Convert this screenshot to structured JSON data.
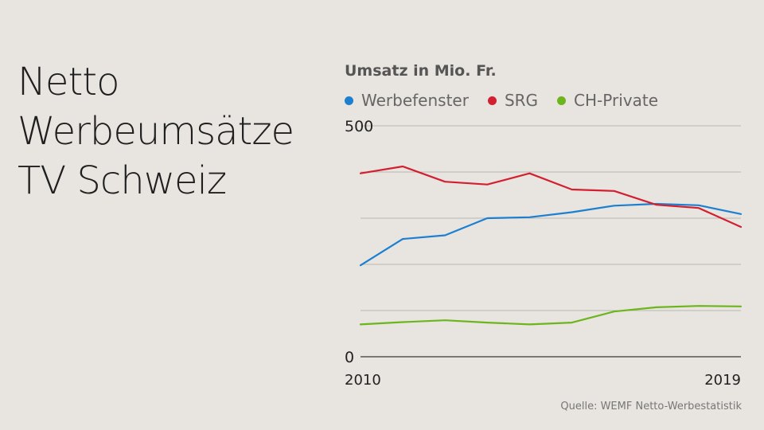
{
  "headline": {
    "line1": "Netto",
    "line2": "Werbeumsätze",
    "line3": "TV Schweiz"
  },
  "source": "Quelle: WEMF Netto-Werbestatistik",
  "colors": {
    "background": "#e8e5e0",
    "grid": "#b9b6b1",
    "axis": "#555555"
  },
  "chart_data": {
    "type": "line",
    "title": "Umsatz in Mio. Fr.",
    "xlabel": "",
    "ylabel": "",
    "x": [
      2010,
      2011,
      2012,
      2013,
      2014,
      2015,
      2016,
      2017,
      2018,
      2019
    ],
    "xlim": [
      2010,
      2019
    ],
    "ylim": [
      0,
      500
    ],
    "x_tick_labels": [
      {
        "value": 2010,
        "label": "2010"
      },
      {
        "value": 2019,
        "label": "2019"
      }
    ],
    "y_tick_labels": [
      {
        "value": 0,
        "label": "0"
      },
      {
        "value": 500,
        "label": "500"
      }
    ],
    "gridlines": [
      100,
      200,
      300,
      400,
      500
    ],
    "legend_position": "top-left",
    "series": [
      {
        "name": "Werbefenster",
        "color": "#1d7fd0",
        "values": [
          198,
          255,
          263,
          300,
          302,
          313,
          327,
          331,
          328,
          309
        ]
      },
      {
        "name": "SRG",
        "color": "#d31f30",
        "values": [
          397,
          412,
          379,
          373,
          397,
          362,
          359,
          329,
          322,
          281
        ]
      },
      {
        "name": "CH-Private",
        "color": "#6cb51c",
        "values": [
          70,
          75,
          79,
          74,
          70,
          74,
          98,
          107,
          110,
          109
        ]
      }
    ]
  }
}
